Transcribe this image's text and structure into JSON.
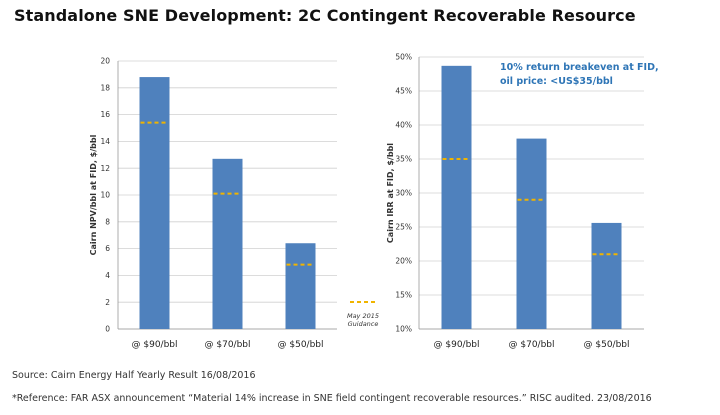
{
  "title": "Standalone SNE Development: 2C Contingent Recoverable Resource",
  "colors": {
    "bar": "#4f81bd",
    "guidance": "#f0b400",
    "grid": "#d0d0d0",
    "annotation": "#2e75b6"
  },
  "footnotes": {
    "source": "Source: Cairn Energy Half Yearly Result 16/08/2016",
    "reference": "*Reference: FAR ASX announcement “Material 14% increase in SNE field contingent recoverable resources.” RISC audited. 23/08/2016"
  },
  "chart_data": [
    {
      "type": "bar",
      "title": "",
      "xlabel": "",
      "ylabel": "Cairn NPV/bbl at FID, $/bbl",
      "categories": [
        "@ $90/bbl",
        "@ $70/bbl",
        "@ $50/bbl"
      ],
      "ylim": [
        0,
        20
      ],
      "yticks": [
        0,
        2,
        4,
        6,
        8,
        10,
        12,
        14,
        16,
        18,
        20
      ],
      "ytick_labels": [
        "0",
        "2",
        "4",
        "6",
        "8",
        "10",
        "12",
        "14",
        "16",
        "18",
        "20"
      ],
      "grid": true,
      "series": [
        {
          "name": "NPV/bbl",
          "values": [
            18.8,
            12.7,
            6.4
          ]
        },
        {
          "name": "May 2015 Guidance",
          "style": "dashed-marker",
          "values": [
            15.4,
            10.1,
            4.8
          ]
        }
      ],
      "legend": {
        "position": "bottom-right",
        "label_line1": "May 2015",
        "label_line2": "Guidance"
      }
    },
    {
      "type": "bar",
      "title": "",
      "xlabel": "",
      "ylabel": "Cairn IRR at FID, $/bbl",
      "categories": [
        "@ $90/bbl",
        "@ $70/bbl",
        "@ $50/bbl"
      ],
      "ylim": [
        10,
        50
      ],
      "yticks": [
        10,
        15,
        20,
        25,
        30,
        35,
        40,
        45,
        50
      ],
      "ytick_labels": [
        "10%",
        "15%",
        "20%",
        "25%",
        "30%",
        "35%",
        "40%",
        "45%",
        "50%"
      ],
      "grid": true,
      "series": [
        {
          "name": "IRR",
          "values": [
            48.7,
            38.0,
            25.6
          ]
        },
        {
          "name": "May 2015 Guidance",
          "style": "dashed-marker",
          "values": [
            35.0,
            29.0,
            21.0
          ]
        }
      ],
      "annotation": {
        "line1": "10% return breakeven at FID,",
        "line2": "oil price: <US$35/bbl"
      }
    }
  ]
}
